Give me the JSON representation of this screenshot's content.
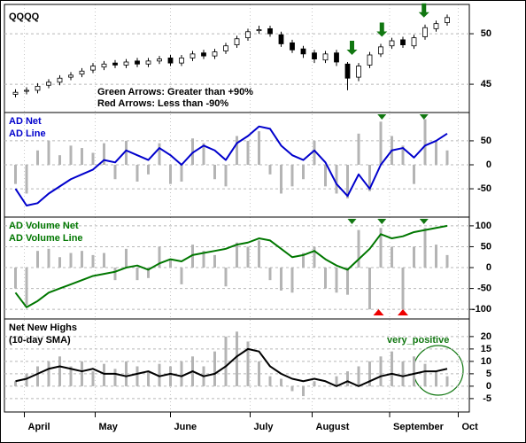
{
  "chart_data": [
    {
      "type": "candlestick",
      "title": "QQQQ",
      "annotations": [
        "Green Arrows: Greater than +90%",
        "Red Arrows: Less than -90%"
      ],
      "x": [
        0,
        1,
        2,
        3,
        4,
        5,
        6,
        7,
        8,
        9,
        10,
        11,
        12,
        13,
        14,
        15,
        16,
        17,
        18,
        19,
        20,
        21,
        22,
        23,
        24,
        25,
        26,
        27,
        28,
        29,
        30,
        31,
        32,
        33,
        34,
        35,
        36,
        37,
        38,
        39
      ],
      "open": [
        44.0,
        44.3,
        44.4,
        44.9,
        45.2,
        45.7,
        46.0,
        46.4,
        46.7,
        47.1,
        46.9,
        47.3,
        47.0,
        47.3,
        47.6,
        47.1,
        47.6,
        48.1,
        47.8,
        48.3,
        48.9,
        49.6,
        50.3,
        50.5,
        49.9,
        49.1,
        48.5,
        48.1,
        47.4,
        48.1,
        47.0,
        45.7,
        46.9,
        48.0,
        48.8,
        49.4,
        48.8,
        49.7,
        50.5,
        51.1
      ],
      "high": [
        44.5,
        44.7,
        45.1,
        45.5,
        45.9,
        46.2,
        46.6,
        47.1,
        47.3,
        47.4,
        47.5,
        47.6,
        47.6,
        47.8,
        47.9,
        47.9,
        48.3,
        48.4,
        48.5,
        49.1,
        49.8,
        50.5,
        50.8,
        50.8,
        50.2,
        49.4,
        48.8,
        48.4,
        48.3,
        48.4,
        47.2,
        47.1,
        48.2,
        49.0,
        49.6,
        49.7,
        49.9,
        50.9,
        51.3,
        51.9
      ],
      "low": [
        43.7,
        44.0,
        44.1,
        44.6,
        44.9,
        45.4,
        45.7,
        46.1,
        46.4,
        46.6,
        46.6,
        46.7,
        46.7,
        47.0,
        46.8,
        46.8,
        47.3,
        47.5,
        47.5,
        48.0,
        48.6,
        49.3,
        50.0,
        49.7,
        48.7,
        48.1,
        47.6,
        47.1,
        47.1,
        46.8,
        44.4,
        45.3,
        46.6,
        47.7,
        48.5,
        48.6,
        48.5,
        49.4,
        50.2,
        50.8
      ],
      "close": [
        44.2,
        44.4,
        44.8,
        45.2,
        45.6,
        45.9,
        46.3,
        46.8,
        47.0,
        46.9,
        47.2,
        47.0,
        47.3,
        47.5,
        47.1,
        47.6,
        48.0,
        47.8,
        48.2,
        48.8,
        49.5,
        50.2,
        50.4,
        50.0,
        49.0,
        48.4,
        48.0,
        47.5,
        48.0,
        47.2,
        45.6,
        46.8,
        47.9,
        48.7,
        49.3,
        48.9,
        49.6,
        50.6,
        51.0,
        51.6
      ],
      "up_color": "#ffffff",
      "down_color": "#000000",
      "arrow_color": "#117711",
      "green_arrows": [
        30.4,
        33.1,
        36.9
      ],
      "ylim": [
        42.2,
        52.9
      ],
      "yticks": [
        45,
        50
      ],
      "grid": true
    },
    {
      "type": "bar-line",
      "label_color": "#0000cc",
      "x": [
        0,
        1,
        2,
        3,
        4,
        5,
        6,
        7,
        8,
        9,
        10,
        11,
        12,
        13,
        14,
        15,
        16,
        17,
        18,
        19,
        20,
        21,
        22,
        23,
        24,
        25,
        26,
        27,
        28,
        29,
        30,
        31,
        32,
        33,
        34,
        35,
        36,
        37,
        38,
        39
      ],
      "series": [
        {
          "name": "AD Net",
          "style": "bar",
          "color": "#b4b4b4",
          "values": [
            -40,
            -60,
            30,
            50,
            20,
            40,
            35,
            25,
            45,
            -30,
            50,
            -35,
            -20,
            45,
            -40,
            -35,
            55,
            45,
            -30,
            -45,
            60,
            50,
            70,
            -20,
            -60,
            -45,
            -30,
            50,
            -45,
            -60,
            -70,
            65,
            -55,
            90,
            60,
            40,
            -40,
            95,
            50,
            30
          ]
        },
        {
          "name": "AD Line",
          "style": "line",
          "color": "#0000cc",
          "values": [
            -50,
            -85,
            -80,
            -60,
            -45,
            -30,
            -20,
            -10,
            10,
            5,
            30,
            20,
            10,
            35,
            20,
            0,
            25,
            40,
            30,
            10,
            45,
            60,
            80,
            75,
            40,
            20,
            10,
            30,
            5,
            -40,
            -65,
            -20,
            -50,
            0,
            30,
            35,
            15,
            40,
            50,
            65
          ]
        }
      ],
      "arrow_color": "#117711",
      "green_arrows": [
        33.1,
        36.9
      ],
      "ylim": [
        -109,
        109
      ],
      "yticks": [
        -50,
        0,
        50
      ],
      "grid": true
    },
    {
      "type": "bar-line",
      "label_color": "#007700",
      "x": [
        0,
        1,
        2,
        3,
        4,
        5,
        6,
        7,
        8,
        9,
        10,
        11,
        12,
        13,
        14,
        15,
        16,
        17,
        18,
        19,
        20,
        21,
        22,
        23,
        24,
        25,
        26,
        27,
        28,
        29,
        30,
        31,
        32,
        33,
        34,
        35,
        36,
        37,
        38,
        39
      ],
      "series": [
        {
          "name": "AD Volume Net",
          "style": "bar",
          "color": "#b4b4b4",
          "values": [
            -50,
            -90,
            40,
            45,
            25,
            35,
            40,
            30,
            35,
            -30,
            45,
            -30,
            -25,
            50,
            20,
            -40,
            55,
            40,
            30,
            -45,
            60,
            50,
            65,
            -30,
            -55,
            -60,
            35,
            50,
            -50,
            -60,
            -65,
            90,
            -100,
            95,
            50,
            -100,
            50,
            95,
            55,
            30
          ]
        },
        {
          "name": "AD Volume Line",
          "style": "line",
          "color": "#007700",
          "values": [
            -60,
            -95,
            -80,
            -60,
            -50,
            -40,
            -30,
            -20,
            -15,
            -10,
            0,
            5,
            -5,
            10,
            20,
            15,
            30,
            35,
            40,
            45,
            55,
            60,
            70,
            65,
            45,
            25,
            30,
            40,
            20,
            5,
            -5,
            20,
            45,
            80,
            70,
            75,
            85,
            90,
            95,
            100
          ]
        }
      ],
      "arrow_color": "#117711",
      "green_arrows": [
        30.4,
        33.1,
        36.9
      ],
      "red_arrow_color": "#ee0000",
      "red_arrows": [
        32.8,
        35.0
      ],
      "ylim": [
        -123,
        121
      ],
      "yticks": [
        -100,
        -50,
        0,
        50,
        100
      ],
      "grid": true
    },
    {
      "type": "bar-line",
      "label_color": "#000000",
      "annotations": [
        "very_positive"
      ],
      "x": [
        0,
        1,
        2,
        3,
        4,
        5,
        6,
        7,
        8,
        9,
        10,
        11,
        12,
        13,
        14,
        15,
        16,
        17,
        18,
        19,
        20,
        21,
        22,
        23,
        24,
        25,
        26,
        27,
        28,
        29,
        30,
        31,
        32,
        33,
        34,
        35,
        36,
        37,
        38,
        39
      ],
      "series": [
        {
          "name": "Net New Highs",
          "style": "bar",
          "color": "#b4b4b4",
          "values": [
            2,
            5,
            8,
            10,
            12,
            8,
            10,
            6,
            9,
            7,
            10,
            8,
            6,
            9,
            8,
            10,
            12,
            8,
            14,
            20,
            22,
            18,
            10,
            4,
            3,
            -2,
            -4,
            2,
            0,
            4,
            6,
            8,
            10,
            12,
            14,
            10,
            12,
            9,
            6,
            4
          ]
        },
        {
          "name": "(10-day SMA)",
          "style": "line",
          "color": "#000000",
          "values": [
            2,
            3,
            5,
            7,
            8,
            7,
            6,
            7,
            5,
            5,
            4,
            5,
            6,
            4,
            5,
            4,
            6,
            4,
            5,
            8,
            12,
            15,
            14,
            8,
            5,
            3,
            2,
            3,
            2,
            0,
            2,
            0,
            2,
            4,
            5,
            4,
            5,
            6,
            6,
            7
          ]
        }
      ],
      "ylim": [
        -10.4,
        27.1
      ],
      "yticks": [
        -5,
        0,
        5,
        10,
        15,
        20
      ],
      "grid": true,
      "xlim": [
        -1,
        41
      ],
      "xticks": [
        {
          "value": 0.8,
          "label": "April"
        },
        {
          "value": 7.2,
          "label": "May"
        },
        {
          "value": 14.0,
          "label": "June"
        },
        {
          "value": 21.2,
          "label": "July"
        },
        {
          "value": 26.8,
          "label": "August"
        },
        {
          "value": 33.8,
          "label": "September"
        },
        {
          "value": 40.0,
          "label": "Oct"
        }
      ]
    }
  ]
}
